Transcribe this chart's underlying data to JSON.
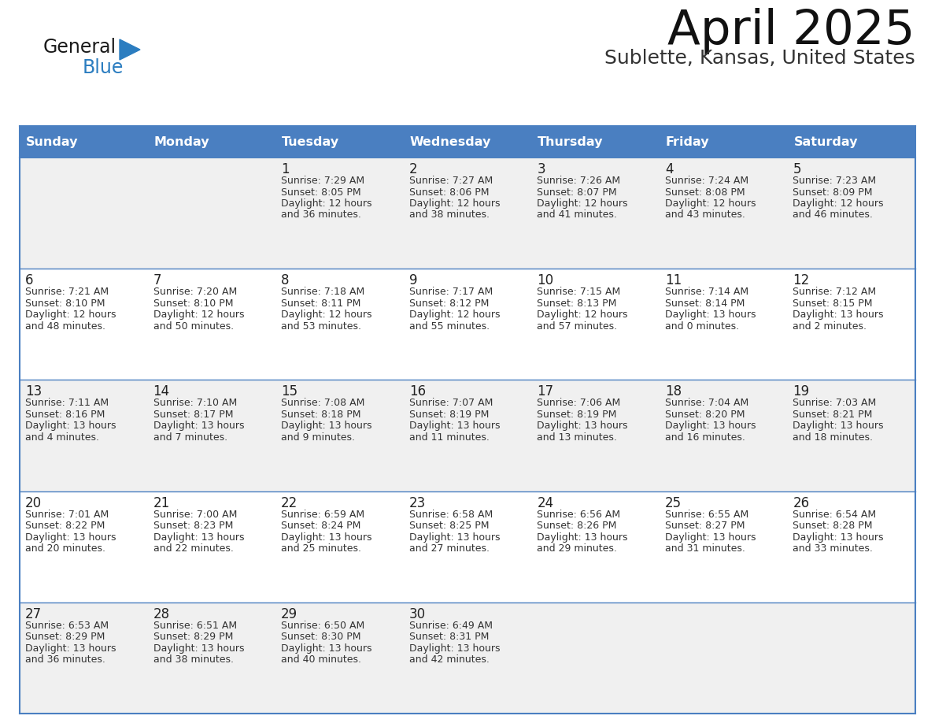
{
  "title": "April 2025",
  "subtitle": "Sublette, Kansas, United States",
  "header_bg_color": "#4A7FC1",
  "header_text_color": "#FFFFFF",
  "row_bg_even": "#F0F0F0",
  "row_bg_odd": "#FFFFFF",
  "border_color": "#4A7FC1",
  "text_color": "#333333",
  "day_num_color": "#222222",
  "info_text_color": "#333333",
  "days_of_week": [
    "Sunday",
    "Monday",
    "Tuesday",
    "Wednesday",
    "Thursday",
    "Friday",
    "Saturday"
  ],
  "calendar_data": [
    [
      {
        "day": "",
        "info": ""
      },
      {
        "day": "",
        "info": ""
      },
      {
        "day": "1",
        "info": "Sunrise: 7:29 AM\nSunset: 8:05 PM\nDaylight: 12 hours\nand 36 minutes."
      },
      {
        "day": "2",
        "info": "Sunrise: 7:27 AM\nSunset: 8:06 PM\nDaylight: 12 hours\nand 38 minutes."
      },
      {
        "day": "3",
        "info": "Sunrise: 7:26 AM\nSunset: 8:07 PM\nDaylight: 12 hours\nand 41 minutes."
      },
      {
        "day": "4",
        "info": "Sunrise: 7:24 AM\nSunset: 8:08 PM\nDaylight: 12 hours\nand 43 minutes."
      },
      {
        "day": "5",
        "info": "Sunrise: 7:23 AM\nSunset: 8:09 PM\nDaylight: 12 hours\nand 46 minutes."
      }
    ],
    [
      {
        "day": "6",
        "info": "Sunrise: 7:21 AM\nSunset: 8:10 PM\nDaylight: 12 hours\nand 48 minutes."
      },
      {
        "day": "7",
        "info": "Sunrise: 7:20 AM\nSunset: 8:10 PM\nDaylight: 12 hours\nand 50 minutes."
      },
      {
        "day": "8",
        "info": "Sunrise: 7:18 AM\nSunset: 8:11 PM\nDaylight: 12 hours\nand 53 minutes."
      },
      {
        "day": "9",
        "info": "Sunrise: 7:17 AM\nSunset: 8:12 PM\nDaylight: 12 hours\nand 55 minutes."
      },
      {
        "day": "10",
        "info": "Sunrise: 7:15 AM\nSunset: 8:13 PM\nDaylight: 12 hours\nand 57 minutes."
      },
      {
        "day": "11",
        "info": "Sunrise: 7:14 AM\nSunset: 8:14 PM\nDaylight: 13 hours\nand 0 minutes."
      },
      {
        "day": "12",
        "info": "Sunrise: 7:12 AM\nSunset: 8:15 PM\nDaylight: 13 hours\nand 2 minutes."
      }
    ],
    [
      {
        "day": "13",
        "info": "Sunrise: 7:11 AM\nSunset: 8:16 PM\nDaylight: 13 hours\nand 4 minutes."
      },
      {
        "day": "14",
        "info": "Sunrise: 7:10 AM\nSunset: 8:17 PM\nDaylight: 13 hours\nand 7 minutes."
      },
      {
        "day": "15",
        "info": "Sunrise: 7:08 AM\nSunset: 8:18 PM\nDaylight: 13 hours\nand 9 minutes."
      },
      {
        "day": "16",
        "info": "Sunrise: 7:07 AM\nSunset: 8:19 PM\nDaylight: 13 hours\nand 11 minutes."
      },
      {
        "day": "17",
        "info": "Sunrise: 7:06 AM\nSunset: 8:19 PM\nDaylight: 13 hours\nand 13 minutes."
      },
      {
        "day": "18",
        "info": "Sunrise: 7:04 AM\nSunset: 8:20 PM\nDaylight: 13 hours\nand 16 minutes."
      },
      {
        "day": "19",
        "info": "Sunrise: 7:03 AM\nSunset: 8:21 PM\nDaylight: 13 hours\nand 18 minutes."
      }
    ],
    [
      {
        "day": "20",
        "info": "Sunrise: 7:01 AM\nSunset: 8:22 PM\nDaylight: 13 hours\nand 20 minutes."
      },
      {
        "day": "21",
        "info": "Sunrise: 7:00 AM\nSunset: 8:23 PM\nDaylight: 13 hours\nand 22 minutes."
      },
      {
        "day": "22",
        "info": "Sunrise: 6:59 AM\nSunset: 8:24 PM\nDaylight: 13 hours\nand 25 minutes."
      },
      {
        "day": "23",
        "info": "Sunrise: 6:58 AM\nSunset: 8:25 PM\nDaylight: 13 hours\nand 27 minutes."
      },
      {
        "day": "24",
        "info": "Sunrise: 6:56 AM\nSunset: 8:26 PM\nDaylight: 13 hours\nand 29 minutes."
      },
      {
        "day": "25",
        "info": "Sunrise: 6:55 AM\nSunset: 8:27 PM\nDaylight: 13 hours\nand 31 minutes."
      },
      {
        "day": "26",
        "info": "Sunrise: 6:54 AM\nSunset: 8:28 PM\nDaylight: 13 hours\nand 33 minutes."
      }
    ],
    [
      {
        "day": "27",
        "info": "Sunrise: 6:53 AM\nSunset: 8:29 PM\nDaylight: 13 hours\nand 36 minutes."
      },
      {
        "day": "28",
        "info": "Sunrise: 6:51 AM\nSunset: 8:29 PM\nDaylight: 13 hours\nand 38 minutes."
      },
      {
        "day": "29",
        "info": "Sunrise: 6:50 AM\nSunset: 8:30 PM\nDaylight: 13 hours\nand 40 minutes."
      },
      {
        "day": "30",
        "info": "Sunrise: 6:49 AM\nSunset: 8:31 PM\nDaylight: 13 hours\nand 42 minutes."
      },
      {
        "day": "",
        "info": ""
      },
      {
        "day": "",
        "info": ""
      },
      {
        "day": "",
        "info": ""
      }
    ]
  ],
  "logo_color_general": "#1a1a1a",
  "logo_color_blue": "#2B7DC0",
  "logo_triangle_color": "#2B7DC0",
  "title_fontsize": 44,
  "subtitle_fontsize": 18,
  "header_fontsize": 11.5,
  "day_num_fontsize": 12,
  "info_fontsize": 9
}
